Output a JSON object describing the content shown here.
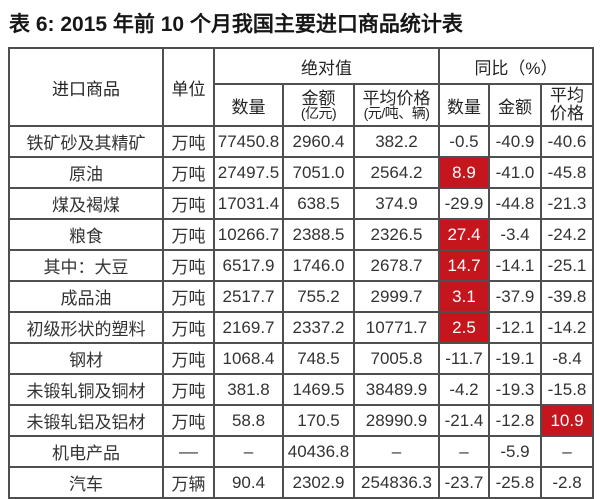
{
  "title": "表 6: 2015 年前 10 个月我国主要进口商品统计表",
  "colors": {
    "highlight_bg": "#c4161c",
    "highlight_text": "#ffffff",
    "border": "#4f4f4f"
  },
  "table": {
    "column_keys": [
      "product",
      "unit",
      "quantity",
      "amount",
      "avg-price",
      "yoy-quantity",
      "yoy-amount",
      "yoy-avg-price"
    ],
    "header": {
      "product": "进口商品",
      "unit": "单位",
      "group_absolute": "绝对值",
      "group_yoy": "同比（%）",
      "abs_quantity": "数量",
      "abs_amount_line1": "金额",
      "abs_amount_line2": "(亿元)",
      "abs_avg_line1": "平均价格",
      "abs_avg_line2": "(元/吨、辆)",
      "yoy_quantity": "数量",
      "yoy_amount": "金额",
      "yoy_avg_line1": "平均",
      "yoy_avg_line2": "价格"
    },
    "rows": [
      {
        "cells": [
          {
            "t": "铁矿砂及其精矿"
          },
          {
            "t": "万吨"
          },
          {
            "t": "77450.8"
          },
          {
            "t": "2960.4"
          },
          {
            "t": "382.2"
          },
          {
            "t": "-0.5"
          },
          {
            "t": "-40.9"
          },
          {
            "t": "-40.6"
          }
        ]
      },
      {
        "cells": [
          {
            "t": "原油"
          },
          {
            "t": "万吨"
          },
          {
            "t": "27497.5"
          },
          {
            "t": "7051.0"
          },
          {
            "t": "2564.2"
          },
          {
            "t": "8.9",
            "h": true
          },
          {
            "t": "-41.0"
          },
          {
            "t": "-45.8"
          }
        ]
      },
      {
        "cells": [
          {
            "t": "煤及褐煤"
          },
          {
            "t": "万吨"
          },
          {
            "t": "17031.4"
          },
          {
            "t": "638.5"
          },
          {
            "t": "374.9"
          },
          {
            "t": "-29.9"
          },
          {
            "t": "-44.8"
          },
          {
            "t": "-21.3"
          }
        ]
      },
      {
        "cells": [
          {
            "t": "粮食"
          },
          {
            "t": "万吨"
          },
          {
            "t": "10266.7"
          },
          {
            "t": "2388.5"
          },
          {
            "t": "2326.5"
          },
          {
            "t": "27.4",
            "h": true
          },
          {
            "t": "-3.4"
          },
          {
            "t": "-24.2"
          }
        ]
      },
      {
        "cells": [
          {
            "t": "其中：大豆"
          },
          {
            "t": "万吨"
          },
          {
            "t": "6517.9"
          },
          {
            "t": "1746.0"
          },
          {
            "t": "2678.7"
          },
          {
            "t": "14.7",
            "h": true
          },
          {
            "t": "-14.1"
          },
          {
            "t": "-25.1"
          }
        ]
      },
      {
        "cells": [
          {
            "t": "成品油"
          },
          {
            "t": "万吨"
          },
          {
            "t": "2517.7"
          },
          {
            "t": "755.2"
          },
          {
            "t": "2999.7"
          },
          {
            "t": "3.1",
            "h": true
          },
          {
            "t": "-37.9"
          },
          {
            "t": "-39.8"
          }
        ]
      },
      {
        "cells": [
          {
            "t": "初级形状的塑料"
          },
          {
            "t": "万吨"
          },
          {
            "t": "2169.7"
          },
          {
            "t": "2337.2"
          },
          {
            "t": "10771.7"
          },
          {
            "t": "2.5",
            "h": true
          },
          {
            "t": "-12.1"
          },
          {
            "t": "-14.2"
          }
        ]
      },
      {
        "cells": [
          {
            "t": "钢材"
          },
          {
            "t": "万吨"
          },
          {
            "t": "1068.4"
          },
          {
            "t": "748.5"
          },
          {
            "t": "7005.8"
          },
          {
            "t": "-11.7"
          },
          {
            "t": "-19.1"
          },
          {
            "t": "-8.4"
          }
        ]
      },
      {
        "cells": [
          {
            "t": "未锻轧铜及铜材"
          },
          {
            "t": "万吨"
          },
          {
            "t": "381.8"
          },
          {
            "t": "1469.5"
          },
          {
            "t": "38489.9"
          },
          {
            "t": "-4.2"
          },
          {
            "t": "-19.3"
          },
          {
            "t": "-15.8"
          }
        ]
      },
      {
        "cells": [
          {
            "t": "未锻轧铝及铝材"
          },
          {
            "t": "万吨"
          },
          {
            "t": "58.8"
          },
          {
            "t": "170.5"
          },
          {
            "t": "28990.9"
          },
          {
            "t": "-21.4"
          },
          {
            "t": "-12.8"
          },
          {
            "t": "10.9",
            "h": true
          }
        ]
      },
      {
        "cells": [
          {
            "t": "机电产品"
          },
          {
            "t": "––"
          },
          {
            "t": "–"
          },
          {
            "t": "40436.8"
          },
          {
            "t": "–"
          },
          {
            "t": "–"
          },
          {
            "t": "-5.9"
          },
          {
            "t": "–"
          }
        ]
      },
      {
        "cells": [
          {
            "t": "汽车"
          },
          {
            "t": "万辆"
          },
          {
            "t": "90.4"
          },
          {
            "t": "2302.9"
          },
          {
            "t": "254836.3"
          },
          {
            "t": "-23.7"
          },
          {
            "t": "-25.8"
          },
          {
            "t": "-2.8"
          }
        ]
      }
    ]
  }
}
